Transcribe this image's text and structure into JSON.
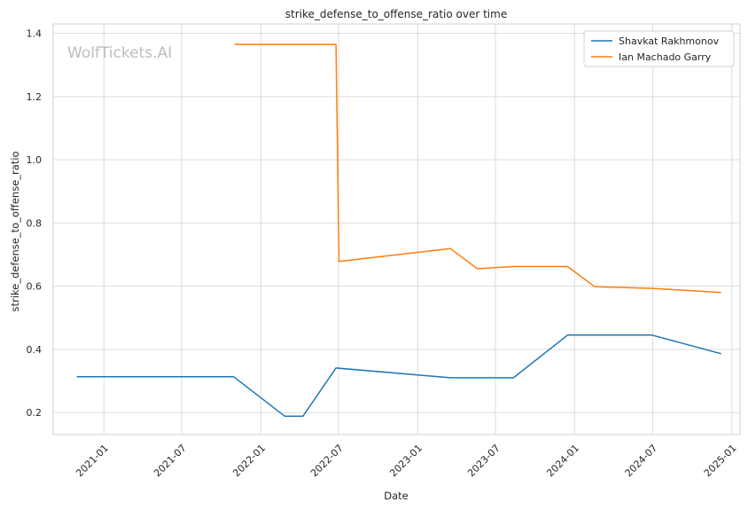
{
  "watermark": "WolfTickets.AI",
  "chart_data": {
    "type": "line",
    "title": "strike_defense_to_offense_ratio over time",
    "xlabel": "Date",
    "ylabel": "strike_defense_to_offense_ratio",
    "x_axis_type": "date",
    "xlim": [
      "2020-09-05",
      "2025-01-20"
    ],
    "ylim": [
      0.13,
      1.43
    ],
    "x_ticks": [
      "2021-01",
      "2021-07",
      "2022-01",
      "2022-07",
      "2023-01",
      "2023-07",
      "2024-01",
      "2024-07",
      "2025-01"
    ],
    "y_ticks": [
      "0.2",
      "0.4",
      "0.6",
      "0.8",
      "1.0",
      "1.2",
      "1.4"
    ],
    "grid": true,
    "legend_position": "top-right",
    "series": [
      {
        "name": "Shavkat Rakhmonov",
        "color": "#1f77b4",
        "points": [
          {
            "x": "2020-10-30",
            "y": 0.313
          },
          {
            "x": "2021-10-30",
            "y": 0.313
          },
          {
            "x": "2022-02-26",
            "y": 0.188
          },
          {
            "x": "2022-04-09",
            "y": 0.188
          },
          {
            "x": "2022-06-25",
            "y": 0.341
          },
          {
            "x": "2023-03-18",
            "y": 0.31
          },
          {
            "x": "2023-08-12",
            "y": 0.31
          },
          {
            "x": "2023-12-16",
            "y": 0.445
          },
          {
            "x": "2024-06-29",
            "y": 0.445
          },
          {
            "x": "2024-12-07",
            "y": 0.386
          }
        ]
      },
      {
        "name": "Ian Machado Garry",
        "color": "#ff7f0e",
        "points": [
          {
            "x": "2021-11-01",
            "y": 1.365
          },
          {
            "x": "2022-06-25",
            "y": 1.365
          },
          {
            "x": "2022-07-02",
            "y": 0.678
          },
          {
            "x": "2023-03-18",
            "y": 0.719
          },
          {
            "x": "2023-05-20",
            "y": 0.655
          },
          {
            "x": "2023-08-12",
            "y": 0.662
          },
          {
            "x": "2023-12-16",
            "y": 0.662
          },
          {
            "x": "2024-02-17",
            "y": 0.598
          },
          {
            "x": "2024-06-29",
            "y": 0.593
          },
          {
            "x": "2024-12-07",
            "y": 0.58
          }
        ]
      }
    ]
  }
}
